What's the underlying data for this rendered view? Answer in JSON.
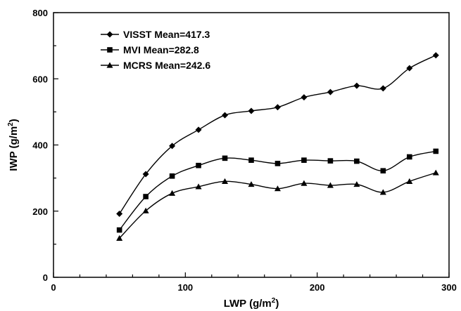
{
  "chart_data": {
    "type": "line",
    "xlabel": "LWP (g/m",
    "xlabel_sup": "2",
    "xlabel_end": ")",
    "ylabel": "IWP (g/m",
    "ylabel_sup": "2",
    "ylabel_end": ")",
    "xlim": [
      0,
      300
    ],
    "ylim": [
      0,
      800
    ],
    "x_ticks": [
      "0",
      "100",
      "200",
      "300"
    ],
    "y_ticks": [
      "0",
      "200",
      "400",
      "600",
      "800"
    ],
    "grid": false,
    "legend_position": "top-left",
    "x": [
      50,
      70,
      90,
      110,
      130,
      150,
      170,
      190,
      210,
      230,
      250,
      270,
      290
    ],
    "series": [
      {
        "name": "VISST Mean=417.3",
        "marker": "diamond",
        "values": [
          192,
          312,
          397,
          446,
          490,
          503,
          514,
          544,
          560,
          579,
          571,
          632,
          671
        ]
      },
      {
        "name": "MVI Mean=282.8",
        "marker": "square",
        "values": [
          143,
          244,
          306,
          338,
          360,
          354,
          344,
          354,
          352,
          351,
          322,
          364,
          381
        ]
      },
      {
        "name": "MCRS Mean=242.6",
        "marker": "triangle",
        "values": [
          118,
          201,
          254,
          274,
          290,
          281,
          268,
          284,
          278,
          281,
          257,
          290,
          316
        ]
      }
    ]
  }
}
